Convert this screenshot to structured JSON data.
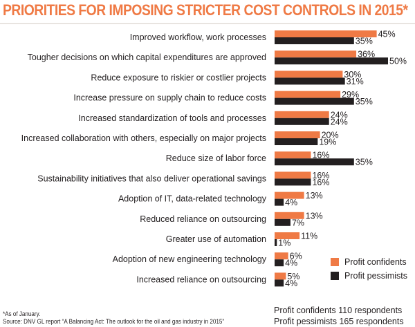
{
  "title": "PRIORITIES FOR IMPOSING STRICTER COST CONTROLS IN 2015*",
  "colors": {
    "confidents": "#ef7a45",
    "pessimists": "#231f20",
    "title": "#ef7a45"
  },
  "chart_data": {
    "type": "bar",
    "orientation": "horizontal",
    "categories": [
      "Improved workflow, work processes",
      "Tougher decisions on which capital expenditures are approved",
      "Reduce exposure to riskier or costlier projects",
      "Increase pressure on supply chain to reduce costs",
      "Increased standardization of tools and processes",
      "Increased collaboration with others, especially on major projects",
      "Reduce size of labor force",
      "Sustainability initiatives that also deliver operational savings",
      "Adoption of IT, data-related technology",
      "Reduced reliance on outsourcing",
      "Greater use of automation",
      "Adoption of new engineering technology",
      "Increased reliance on outsourcing"
    ],
    "series": [
      {
        "name": "Profit confidents",
        "values": [
          45,
          36,
          30,
          29,
          24,
          20,
          16,
          16,
          13,
          13,
          11,
          6,
          5
        ],
        "labels": [
          "45%",
          "36%",
          "30%",
          "29%",
          "24%",
          "20%",
          "16%",
          "16%",
          "13%",
          "13%",
          "11%",
          "6%",
          "5%"
        ]
      },
      {
        "name": "Profit pessimists",
        "values": [
          35,
          50,
          31,
          35,
          24,
          19,
          35,
          16,
          4,
          7,
          1,
          4,
          4
        ],
        "labels": [
          "35%",
          "50%",
          "31%",
          "35%",
          "24%",
          "19%",
          "35%",
          "16%",
          "4%",
          "7%",
          "1%",
          "4%",
          "4%"
        ]
      }
    ],
    "xlim": [
      0,
      50
    ],
    "grid": false,
    "legend": "bottom-right"
  },
  "legend": [
    {
      "label": "Profit confidents"
    },
    {
      "label": "Profit pessimists"
    }
  ],
  "footnote": {
    "asterisk": "*As of January.",
    "source": "Source: DNV GL report “A Balancing Act: The outlook for the oil and gas industry in 2015”"
  },
  "respondents": {
    "confidents": "Profit confidents 110 respondents",
    "pessimists": "Profit pessimists 165 respondents"
  }
}
